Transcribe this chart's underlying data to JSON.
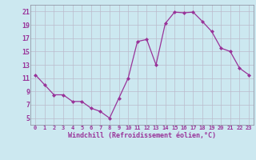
{
  "x": [
    0,
    1,
    2,
    3,
    4,
    5,
    6,
    7,
    8,
    9,
    10,
    11,
    12,
    13,
    14,
    15,
    16,
    17,
    18,
    19,
    20,
    21,
    22,
    23
  ],
  "y": [
    11.5,
    10.0,
    8.5,
    8.5,
    7.5,
    7.5,
    6.5,
    6.0,
    5.0,
    8.0,
    11.0,
    16.5,
    16.8,
    13.0,
    19.2,
    20.9,
    20.8,
    20.9,
    19.5,
    18.0,
    15.5,
    15.0,
    12.5,
    11.5
  ],
  "xlabel": "Windchill (Refroidissement éolien,°C)",
  "ylim": [
    4,
    22
  ],
  "yticks": [
    5,
    7,
    9,
    11,
    13,
    15,
    17,
    19,
    21
  ],
  "xticks": [
    0,
    1,
    2,
    3,
    4,
    5,
    6,
    7,
    8,
    9,
    10,
    11,
    12,
    13,
    14,
    15,
    16,
    17,
    18,
    19,
    20,
    21,
    22,
    23
  ],
  "line_color": "#993399",
  "marker_color": "#993399",
  "bg_color": "#cce8f0",
  "grid_color": "#bbbbcc",
  "font_color": "#993399",
  "tick_fontsize": 5.0,
  "xlabel_fontsize": 6.0,
  "ytick_fontsize": 6.0
}
